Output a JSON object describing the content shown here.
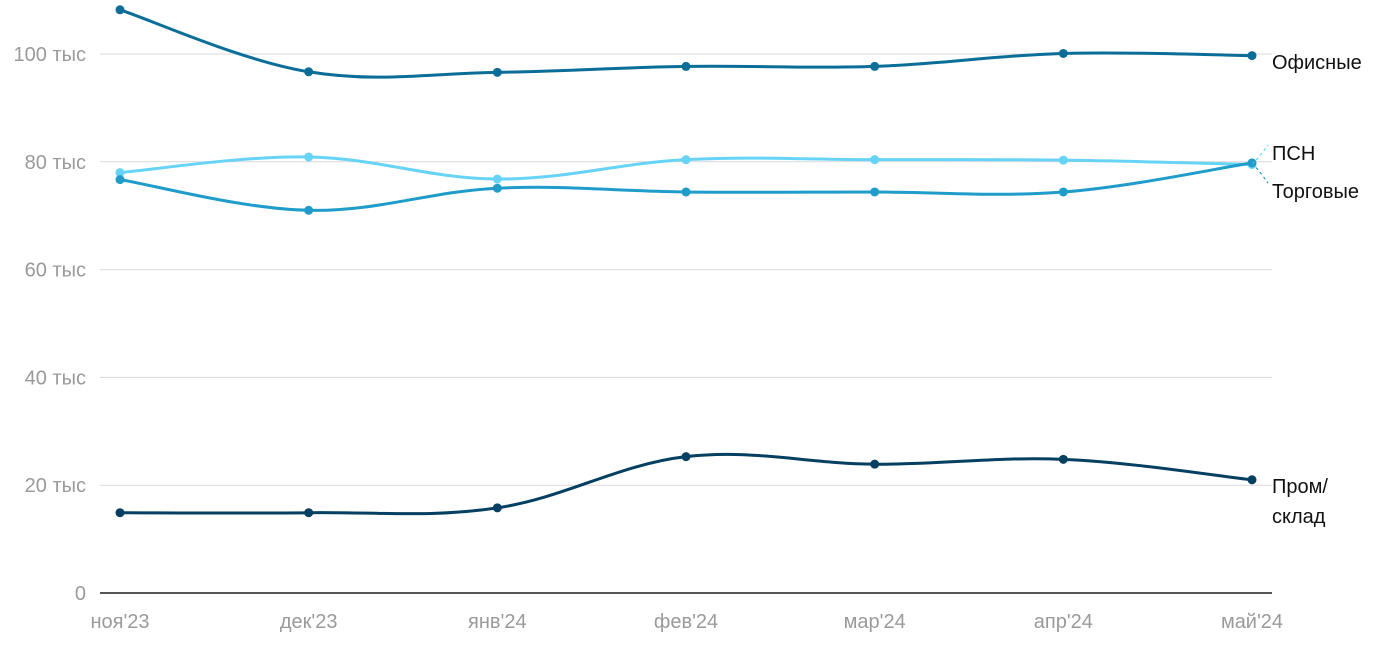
{
  "chart_data": {
    "type": "line",
    "categories": [
      "ноя'23",
      "дек'23",
      "янв'24",
      "фев'24",
      "мар'24",
      "апр'24",
      "май'24"
    ],
    "ylim": [
      0,
      110000
    ],
    "yticks": [
      0,
      20000,
      40000,
      60000,
      80000,
      100000
    ],
    "ytick_labels": [
      "0",
      "20 тыс",
      "40 тыс",
      "60 тыс",
      "80 тыс",
      "100 тыс"
    ],
    "grid": true,
    "legend": "none",
    "series": [
      {
        "name": "Офисные",
        "color": "#0b6e99",
        "values": [
          108200,
          96700,
          96600,
          97700,
          97700,
          100100,
          99700
        ]
      },
      {
        "name": "ПСН",
        "color": "#67d3f6",
        "values": [
          78000,
          80900,
          76800,
          80400,
          80400,
          80300,
          79500
        ]
      },
      {
        "name": "Торговые",
        "color": "#1f9cc9",
        "values": [
          76700,
          71000,
          75100,
          74400,
          74400,
          74400,
          79800
        ]
      },
      {
        "name": "Пром/\nсклад",
        "color": "#053f61",
        "values": [
          14900,
          14900,
          15800,
          25300,
          23900,
          24800,
          21000
        ]
      }
    ]
  }
}
